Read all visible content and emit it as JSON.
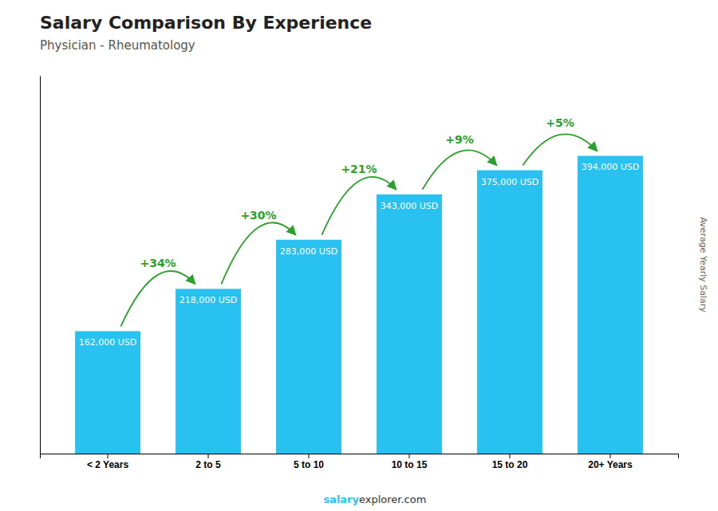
{
  "chart_data": {
    "type": "bar",
    "title": "Salary Comparison By Experience",
    "subtitle": "Physician - Rheumatology",
    "ylabel": "Average Yearly Salary",
    "categories": [
      "< 2 Years",
      "2 to 5",
      "5 to 10",
      "10 to 15",
      "15 to 20",
      "20+ Years"
    ],
    "values": [
      162000,
      218000,
      283000,
      343000,
      375000,
      394000
    ],
    "value_labels": [
      "162,000 USD",
      "218,000 USD",
      "283,000 USD",
      "343,000 USD",
      "375,000 USD",
      "394,000 USD"
    ],
    "data_labels": true,
    "annotations": [
      "+34%",
      "+30%",
      "+21%",
      "+9%",
      "+5%"
    ],
    "footer": [
      "salary",
      "explorer.com"
    ],
    "color": "#29c2f0",
    "ylim": [
      0,
      500000
    ],
    "tick_labels": "x",
    "grid": false
  }
}
